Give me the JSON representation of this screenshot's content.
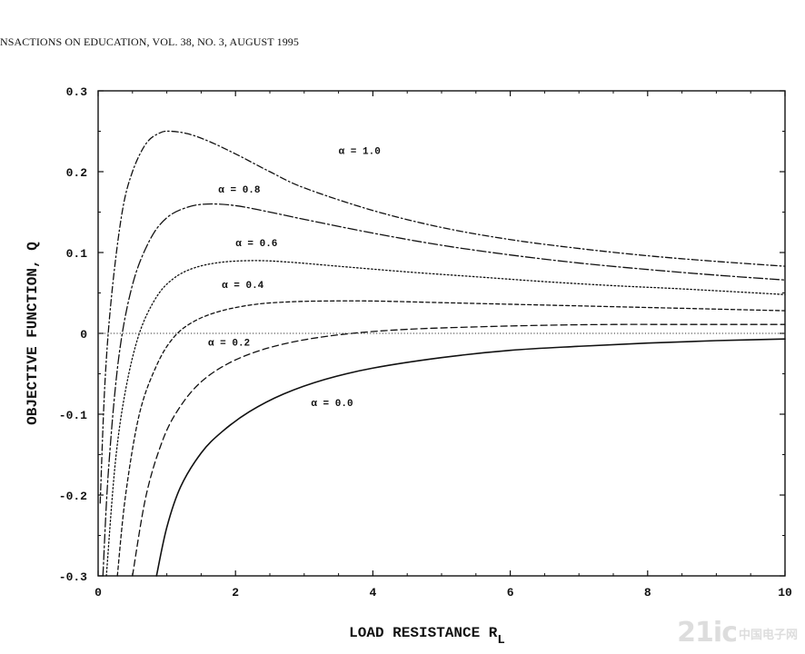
{
  "header": {
    "text": "NSACTIONS ON EDUCATION, VOL. 38, NO. 3, AUGUST 1995"
  },
  "watermark": {
    "main": "21ic",
    "sub": "中国电子网"
  },
  "chart_data": {
    "type": "line",
    "title": "",
    "xlabel": "LOAD RESISTANCE R",
    "xlabel_subscript": "L",
    "ylabel": "OBJECTIVE FUNCTION, Q",
    "xlim": [
      0,
      10
    ],
    "ylim": [
      -0.3,
      0.3
    ],
    "xticks": [
      0,
      2,
      4,
      6,
      8,
      10
    ],
    "xtick_labels": [
      "0",
      "2",
      "4",
      "6",
      "8",
      "10"
    ],
    "yticks": [
      -0.3,
      -0.2,
      -0.1,
      0,
      0.1,
      0.2,
      0.3
    ],
    "ytick_labels": [
      "-0.3",
      "-0.2",
      "-0.1",
      "0",
      "0.1",
      "0.2",
      "0.3"
    ],
    "zero_line": true,
    "grid": false,
    "series": [
      {
        "name": "α = 1.0",
        "style": "dash-dot",
        "label": "α = 1.0",
        "x": [
          0.03,
          0.1,
          0.2,
          0.35,
          0.5,
          0.7,
          0.9,
          1.05,
          1.3,
          1.6,
          2.0,
          2.5,
          3.0,
          4.0,
          5.0,
          6.0,
          7.0,
          8.0,
          9.0,
          10.0
        ],
        "y": [
          -0.21,
          -0.06,
          0.05,
          0.15,
          0.2,
          0.235,
          0.248,
          0.25,
          0.247,
          0.238,
          0.222,
          0.2,
          0.18,
          0.152,
          0.131,
          0.116,
          0.105,
          0.096,
          0.089,
          0.083
        ]
      },
      {
        "name": "α = 0.8",
        "style": "long-dash-dot",
        "label": "α = 0.8",
        "x": [
          0.07,
          0.15,
          0.3,
          0.5,
          0.75,
          1.0,
          1.3,
          1.6,
          2.0,
          2.5,
          3.0,
          4.0,
          5.0,
          6.0,
          7.0,
          8.0,
          9.0,
          10.0
        ],
        "y": [
          -0.3,
          -0.17,
          -0.03,
          0.06,
          0.115,
          0.143,
          0.156,
          0.16,
          0.158,
          0.15,
          0.141,
          0.124,
          0.109,
          0.097,
          0.087,
          0.079,
          0.072,
          0.066
        ]
      },
      {
        "name": "α = 0.6",
        "style": "dotted",
        "label": "α = 0.6",
        "x": [
          0.12,
          0.25,
          0.4,
          0.6,
          0.85,
          1.1,
          1.4,
          1.8,
          2.3,
          2.8,
          3.5,
          4.5,
          5.5,
          6.5,
          7.5,
          8.5,
          10.0
        ],
        "y": [
          -0.3,
          -0.16,
          -0.07,
          0.0,
          0.045,
          0.068,
          0.081,
          0.088,
          0.09,
          0.088,
          0.083,
          0.076,
          0.07,
          0.064,
          0.059,
          0.055,
          0.048
        ]
      },
      {
        "name": "α = 0.4",
        "style": "short-dash",
        "label": "α = 0.4",
        "x": [
          0.28,
          0.4,
          0.6,
          0.85,
          1.1,
          1.4,
          1.8,
          2.3,
          2.8,
          3.3,
          4.0,
          5.0,
          6.0,
          7.0,
          8.0,
          9.0,
          10.0
        ],
        "y": [
          -0.3,
          -0.2,
          -0.1,
          -0.04,
          -0.005,
          0.015,
          0.028,
          0.036,
          0.039,
          0.04,
          0.04,
          0.038,
          0.036,
          0.034,
          0.032,
          0.03,
          0.028
        ]
      },
      {
        "name": "α = 0.2",
        "style": "dashed",
        "label": "α = 0.2",
        "x": [
          0.5,
          0.7,
          0.95,
          1.2,
          1.5,
          1.9,
          2.4,
          3.0,
          3.7,
          4.5,
          5.5,
          6.5,
          7.5,
          8.5,
          10.0
        ],
        "y": [
          -0.3,
          -0.2,
          -0.13,
          -0.09,
          -0.06,
          -0.037,
          -0.02,
          -0.008,
          0.0,
          0.005,
          0.008,
          0.01,
          0.011,
          0.011,
          0.011
        ]
      },
      {
        "name": "α = 0.0",
        "style": "solid",
        "label": "α = 0.0",
        "x": [
          0.85,
          1.0,
          1.2,
          1.5,
          1.8,
          2.2,
          2.7,
          3.3,
          4.0,
          5.0,
          6.0,
          7.0,
          8.0,
          9.0,
          10.0
        ],
        "y": [
          -0.3,
          -0.24,
          -0.19,
          -0.148,
          -0.122,
          -0.097,
          -0.075,
          -0.057,
          -0.043,
          -0.03,
          -0.021,
          -0.016,
          -0.012,
          -0.009,
          -0.007
        ]
      }
    ],
    "annotations": [
      {
        "text": "α = 1.0",
        "x": 3.5,
        "y": 0.222
      },
      {
        "text": "α = 0.8",
        "x": 1.75,
        "y": 0.174
      },
      {
        "text": "α = 0.6",
        "x": 2.0,
        "y": 0.108
      },
      {
        "text": "α = 0.4",
        "x": 1.8,
        "y": 0.056
      },
      {
        "text": "α = 0.2",
        "x": 1.6,
        "y": -0.015
      },
      {
        "text": "α = 0.0",
        "x": 3.1,
        "y": -0.09
      }
    ]
  }
}
